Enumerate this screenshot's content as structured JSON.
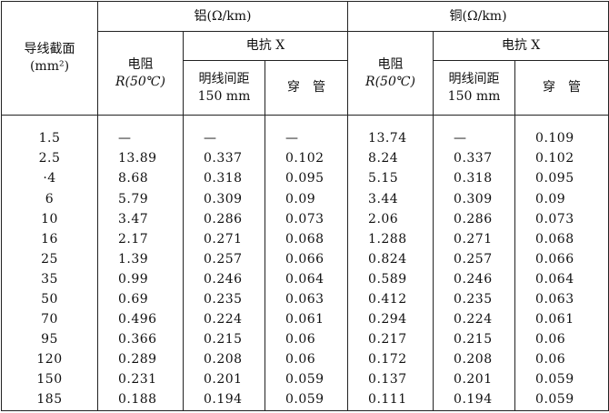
{
  "header": {
    "section_col": "导线截面(mm²)",
    "section_col_line1": "导线截面",
    "section_col_line2": "(mm²)",
    "aluminum": "铝(Ω/km)",
    "copper": "铜(Ω/km)",
    "resistance_line1": "电阻",
    "resistance_line2": "R(50℃)",
    "reactance_label": "电抗 X",
    "open_wire_line1": "明线间距",
    "open_wire_line2": "150 mm",
    "conduit": "穿　管"
  },
  "rows": [
    {
      "section": "1.5",
      "al_r": "—",
      "al_x_open": "—",
      "al_x_pipe": "—",
      "cu_r": "13.74",
      "cu_x_open": "—",
      "cu_x_pipe": "0.109"
    },
    {
      "section": "2.5",
      "al_r": "13.89",
      "al_x_open": "0.337",
      "al_x_pipe": "0.102",
      "cu_r": "8.24",
      "cu_x_open": "0.337",
      "cu_x_pipe": "0.102"
    },
    {
      "section": "·4",
      "al_r": "8.68",
      "al_x_open": "0.318",
      "al_x_pipe": "0.095",
      "cu_r": "5.15",
      "cu_x_open": "0.318",
      "cu_x_pipe": "0.095"
    },
    {
      "section": "6",
      "al_r": "5.79",
      "al_x_open": "0.309",
      "al_x_pipe": "0.09",
      "cu_r": "3.44",
      "cu_x_open": "0.309",
      "cu_x_pipe": "0.09"
    },
    {
      "section": "10",
      "al_r": "3.47",
      "al_x_open": "0.286",
      "al_x_pipe": "0.073",
      "cu_r": "2.06",
      "cu_x_open": "0.286",
      "cu_x_pipe": "0.073"
    },
    {
      "section": "16",
      "al_r": "2.17",
      "al_x_open": "0.271",
      "al_x_pipe": "0.068",
      "cu_r": "1.288",
      "cu_x_open": "0.271",
      "cu_x_pipe": "0.068"
    },
    {
      "section": "25",
      "al_r": "1.39",
      "al_x_open": "0.257",
      "al_x_pipe": "0.066",
      "cu_r": "0.824",
      "cu_x_open": "0.257",
      "cu_x_pipe": "0.066"
    },
    {
      "section": "35",
      "al_r": "0.99",
      "al_x_open": "0.246",
      "al_x_pipe": "0.064",
      "cu_r": "0.589",
      "cu_x_open": "0.246",
      "cu_x_pipe": "0.064"
    },
    {
      "section": "50",
      "al_r": "0.69",
      "al_x_open": "0.235",
      "al_x_pipe": "0.063",
      "cu_r": "0.412",
      "cu_x_open": "0.235",
      "cu_x_pipe": "0.063"
    },
    {
      "section": "70",
      "al_r": "0.496",
      "al_x_open": "0.224",
      "al_x_pipe": "0.061",
      "cu_r": "0.294",
      "cu_x_open": "0.224",
      "cu_x_pipe": "0.061"
    },
    {
      "section": "95",
      "al_r": "0.366",
      "al_x_open": "0.215",
      "al_x_pipe": "0.06",
      "cu_r": "0.217",
      "cu_x_open": "0.215",
      "cu_x_pipe": "0.06"
    },
    {
      "section": "120",
      "al_r": "0.289",
      "al_x_open": "0.208",
      "al_x_pipe": "0.06",
      "cu_r": "0.172",
      "cu_x_open": "0.208",
      "cu_x_pipe": "0.06"
    },
    {
      "section": "150",
      "al_r": "0.231",
      "al_x_open": "0.201",
      "al_x_pipe": "0.059",
      "cu_r": "0.137",
      "cu_x_open": "0.201",
      "cu_x_pipe": "0.059"
    },
    {
      "section": "185",
      "al_r": "0.188",
      "al_x_open": "0.194",
      "al_x_pipe": "0.059",
      "cu_r": "0.111",
      "cu_x_open": "0.194",
      "cu_x_pipe": "0.059"
    }
  ]
}
